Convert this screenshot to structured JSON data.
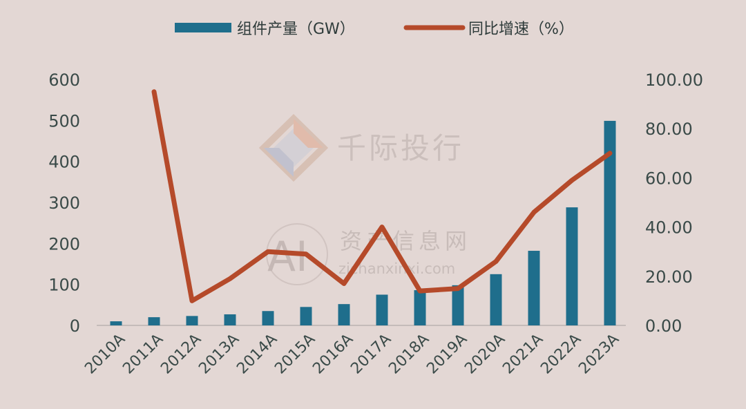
{
  "chart_data": {
    "type": "bar",
    "categories": [
      "2010A",
      "2011A",
      "2012A",
      "2013A",
      "2014A",
      "2015A",
      "2016A",
      "2017A",
      "2018A",
      "2019A",
      "2020A",
      "2021A",
      "2022A",
      "2023A"
    ],
    "series": [
      {
        "name": "组件产量（GW）",
        "type": "bar",
        "axis": "left",
        "values": [
          10,
          20,
          23,
          27,
          35,
          45,
          52,
          75,
          86,
          98,
          125,
          182,
          288,
          499
        ],
        "color": "#1f6e8c"
      },
      {
        "name": "同比增速（%）",
        "type": "line",
        "axis": "right",
        "values": [
          null,
          95,
          10,
          19,
          30,
          29,
          17,
          40,
          14,
          15,
          26,
          46,
          59,
          70
        ],
        "color": "#b54a2a"
      }
    ],
    "y_left": {
      "ylim": [
        0,
        600
      ],
      "ticks": [
        "0",
        "100",
        "200",
        "300",
        "400",
        "500",
        "600"
      ]
    },
    "y_right": {
      "ylim": [
        0,
        100
      ],
      "ticks": [
        "0.00",
        "20.00",
        "40.00",
        "60.00",
        "80.00",
        "100.00"
      ]
    },
    "grid": false,
    "legend_position": "top"
  },
  "watermarks": {
    "brand": "千际投行",
    "site_cn": "资产信息网",
    "site_url": "zichanxinxi.com",
    "logo_letters": "AI"
  },
  "colors": {
    "background": "#e3d7d4",
    "axis_text": "#3a4a48",
    "bar": "#1f6e8c",
    "line": "#b54a2a"
  }
}
